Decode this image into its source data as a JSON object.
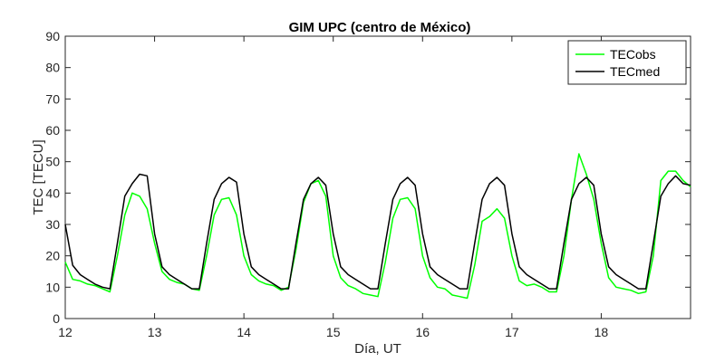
{
  "chart_data": {
    "type": "line",
    "title": "GIM UPC (centro de México)",
    "xlabel": "Día, UT",
    "ylabel": "TEC [TECU]",
    "xlim": [
      12,
      19
    ],
    "ylim": [
      0,
      90
    ],
    "xticks": [
      12,
      13,
      14,
      15,
      16,
      17,
      18
    ],
    "yticks": [
      0,
      10,
      20,
      30,
      40,
      50,
      60,
      70,
      80,
      90
    ],
    "grid": false,
    "legend_position": "top-right",
    "series": [
      {
        "name": "TECobs",
        "color": "#00ff00",
        "x": [
          12.0,
          12.083,
          12.167,
          12.25,
          12.333,
          12.417,
          12.5,
          12.583,
          12.667,
          12.75,
          12.833,
          12.917,
          13.0,
          13.083,
          13.167,
          13.25,
          13.333,
          13.417,
          13.5,
          13.583,
          13.667,
          13.75,
          13.833,
          13.917,
          14.0,
          14.083,
          14.167,
          14.25,
          14.333,
          14.417,
          14.5,
          14.583,
          14.667,
          14.75,
          14.833,
          14.917,
          15.0,
          15.083,
          15.167,
          15.25,
          15.333,
          15.417,
          15.5,
          15.583,
          15.667,
          15.75,
          15.833,
          15.917,
          16.0,
          16.083,
          16.167,
          16.25,
          16.333,
          16.417,
          16.5,
          16.583,
          16.667,
          16.75,
          16.833,
          16.917,
          17.0,
          17.083,
          17.167,
          17.25,
          17.333,
          17.417,
          17.5,
          17.583,
          17.667,
          17.75,
          17.833,
          17.917,
          18.0,
          18.083,
          18.167,
          18.25,
          18.333,
          18.417,
          18.5,
          18.583,
          18.667,
          18.75,
          18.833,
          18.917,
          19.0
        ],
        "y": [
          18,
          12.5,
          12,
          11,
          10.5,
          9.5,
          8.5,
          20,
          33,
          40,
          39,
          35,
          24,
          15,
          12.5,
          11.5,
          11,
          9.5,
          9,
          20,
          33,
          38,
          38.5,
          33,
          20,
          14,
          12,
          11,
          10.5,
          9,
          10,
          22,
          37,
          43,
          44,
          39,
          20,
          13,
          10.5,
          9.5,
          8,
          7.5,
          7,
          18,
          32,
          38,
          38.5,
          35,
          20,
          13,
          10,
          9.5,
          7.5,
          7,
          6.5,
          17,
          31,
          32.5,
          35,
          32,
          20,
          12,
          10.5,
          11,
          10,
          8.5,
          8.5,
          20,
          38,
          52.5,
          46,
          38,
          24,
          13,
          10,
          9.5,
          9,
          8,
          8.5,
          20,
          44,
          47,
          47,
          44,
          42
        ]
      },
      {
        "name": "TECmed",
        "color": "#000000",
        "x": [
          12.0,
          12.083,
          12.167,
          12.25,
          12.333,
          12.417,
          12.5,
          12.583,
          12.667,
          12.75,
          12.833,
          12.917,
          13.0,
          13.083,
          13.167,
          13.25,
          13.333,
          13.417,
          13.5,
          13.583,
          13.667,
          13.75,
          13.833,
          13.917,
          14.0,
          14.083,
          14.167,
          14.25,
          14.333,
          14.417,
          14.5,
          14.583,
          14.667,
          14.75,
          14.833,
          14.917,
          15.0,
          15.083,
          15.167,
          15.25,
          15.333,
          15.417,
          15.5,
          15.583,
          15.667,
          15.75,
          15.833,
          15.917,
          16.0,
          16.083,
          16.167,
          16.25,
          16.333,
          16.417,
          16.5,
          16.583,
          16.667,
          16.75,
          16.833,
          16.917,
          17.0,
          17.083,
          17.167,
          17.25,
          17.333,
          17.417,
          17.5,
          17.583,
          17.667,
          17.75,
          17.833,
          17.917,
          18.0,
          18.083,
          18.167,
          18.25,
          18.333,
          18.417,
          18.5,
          18.583,
          18.667,
          18.75,
          18.833,
          18.917,
          19.0
        ],
        "y": [
          30,
          17,
          14,
          12.5,
          11,
          10,
          9.5,
          24,
          39,
          43,
          46,
          45.5,
          27,
          16.5,
          14,
          12.5,
          11,
          9.5,
          9.5,
          24,
          38,
          43,
          45,
          43.5,
          27,
          16.5,
          14,
          12.5,
          11,
          9.5,
          9.5,
          24,
          38,
          43,
          45,
          42.5,
          27,
          16.5,
          14,
          12.5,
          11,
          9.5,
          9.5,
          24,
          38,
          43,
          45,
          42.5,
          27,
          16.5,
          14,
          12.5,
          11,
          9.5,
          9.5,
          24,
          38,
          43,
          45,
          42.5,
          27,
          16.5,
          14,
          12.5,
          11,
          9.5,
          9.5,
          24,
          38,
          43,
          45,
          42.5,
          27,
          16.5,
          14,
          12.5,
          11,
          9.5,
          9.5,
          24,
          39,
          43,
          45.5,
          43,
          42.5
        ]
      }
    ]
  }
}
